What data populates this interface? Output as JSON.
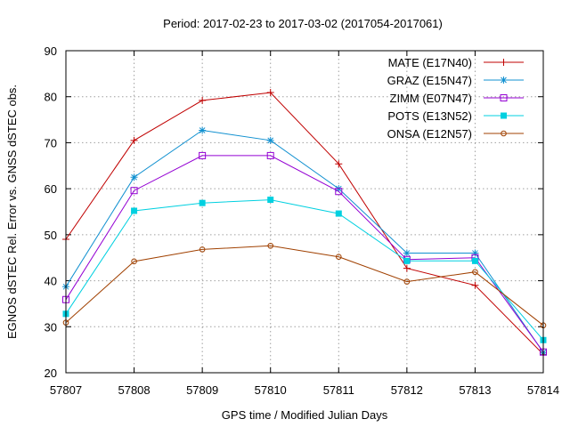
{
  "chart_data": {
    "type": "line",
    "title": "Period: 2017-02-23 to 2017-03-02 (2017054-2017061)",
    "xlabel": "GPS time / Modified Julian Days",
    "ylabel": "EGNOS dSTEC Rel. Error vs. GNSS dSTEC obs.",
    "x": [
      57807,
      57808,
      57809,
      57810,
      57811,
      57812,
      57813,
      57814
    ],
    "xlim": [
      57807,
      57814
    ],
    "ylim": [
      20,
      90
    ],
    "xticks": [
      "57807",
      "57808",
      "57809",
      "57810",
      "57811",
      "57812",
      "57813",
      "57814"
    ],
    "yticks": [
      "20",
      "30",
      "40",
      "50",
      "60",
      "70",
      "80",
      "90"
    ],
    "grid": true,
    "legend_position": "top-right",
    "series": [
      {
        "name": "MATE (E17N40)",
        "color": "#c00000",
        "marker": "plus",
        "values": [
          49.0,
          70.5,
          79.2,
          80.9,
          65.4,
          42.7,
          39.0,
          24.0
        ]
      },
      {
        "name": "GRAZ (E15N47)",
        "color": "#1090d0",
        "marker": "star",
        "values": [
          38.7,
          62.5,
          72.7,
          70.5,
          60.0,
          46.0,
          46.0,
          24.4
        ]
      },
      {
        "name": "ZIMM (E07N47)",
        "color": "#9400d3",
        "marker": "square-open",
        "values": [
          35.9,
          59.6,
          67.2,
          67.2,
          59.4,
          44.6,
          45.0,
          24.5
        ]
      },
      {
        "name": "POTS (E13N52)",
        "color": "#00d0e0",
        "marker": "square-filled",
        "values": [
          32.8,
          55.2,
          56.9,
          57.6,
          54.6,
          44.3,
          44.3,
          27.1
        ]
      },
      {
        "name": "ONSA (E12N57)",
        "color": "#a04000",
        "marker": "circle-open",
        "values": [
          30.9,
          44.2,
          46.8,
          47.6,
          45.2,
          39.8,
          41.9,
          30.3
        ]
      }
    ]
  }
}
